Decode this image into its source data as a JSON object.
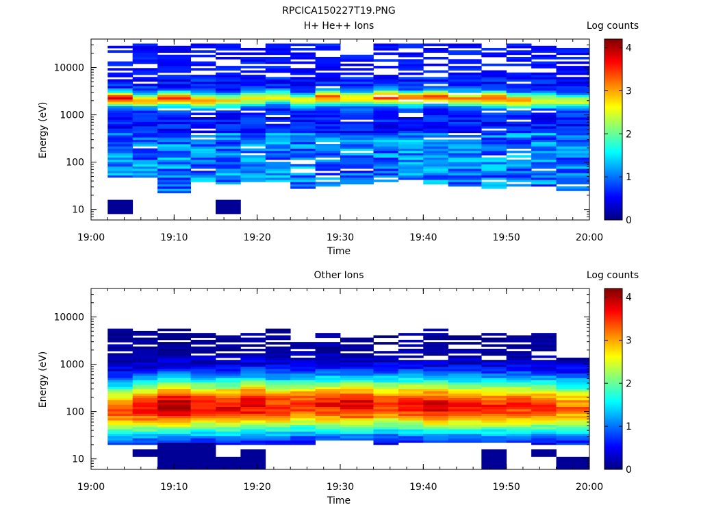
{
  "figure_title": "RPCICA150227T19.PNG",
  "panels": [
    {
      "title": "H+ He++ Ions",
      "ylabel": "Energy (eV)",
      "xlabel": "Time",
      "cbar_label": "Log counts"
    },
    {
      "title": "Other Ions",
      "ylabel": "Energy (eV)",
      "xlabel": "Time",
      "cbar_label": "Log counts"
    }
  ],
  "colorscale": {
    "name": "jet",
    "stops": [
      "#00007f",
      "#0000ff",
      "#007fff",
      "#00ffff",
      "#7fff7f",
      "#ffff00",
      "#ff7f00",
      "#ff0000",
      "#7f0000"
    ],
    "range": [
      0,
      4.2
    ],
    "ticks": [
      0,
      1,
      2,
      3,
      4
    ]
  },
  "chart_data": [
    {
      "type": "heatmap",
      "title": "H+ He++ Ions",
      "xlabel": "Time",
      "ylabel": "Energy (eV)",
      "y_scale": "log",
      "xlim": [
        "19:00",
        "20:00"
      ],
      "ylim": [
        6,
        40000
      ],
      "x_ticks": [
        "19:00",
        "19:10",
        "19:20",
        "19:30",
        "19:40",
        "19:50",
        "20:00"
      ],
      "y_ticks": [
        "10",
        "100",
        "1000",
        "10000"
      ],
      "colorbar_label": "Log counts",
      "colorbar_ticks": [
        "0",
        "1",
        "2",
        "3",
        "4"
      ],
      "time_bins": [
        "19:02",
        "19:05",
        "19:08",
        "19:12",
        "19:15",
        "19:18",
        "19:21",
        "19:24",
        "19:27",
        "19:30",
        "19:34",
        "19:37",
        "19:40",
        "19:43",
        "19:47",
        "19:50",
        "19:53",
        "19:56"
      ],
      "profiles": [
        {
          "from": "19:02",
          "to": "19:05",
          "low": 48,
          "high": 35000,
          "peak_energy": 2200,
          "peak_value": 3.0,
          "extra": [
            [
              8,
              16,
              0.1
            ]
          ]
        },
        {
          "from": "19:05",
          "to": "19:08",
          "low": 48,
          "high": 33000,
          "peak_energy": 2000,
          "peak_value": 2.2
        },
        {
          "from": "19:08",
          "to": "19:12",
          "low": 23,
          "high": 33000,
          "peak_energy": 2200,
          "peak_value": 2.8
        },
        {
          "from": "19:12",
          "to": "19:15",
          "low": 40,
          "high": 33000,
          "peak_energy": 2000,
          "peak_value": 2.2
        },
        {
          "from": "19:15",
          "to": "19:18",
          "low": 35,
          "high": 33000,
          "peak_energy": 2000,
          "peak_value": 2.0,
          "extra": [
            [
              8,
              16,
              0.1
            ]
          ]
        },
        {
          "from": "19:18",
          "to": "19:21",
          "low": 35,
          "high": 33000,
          "peak_energy": 2200,
          "peak_value": 2.0
        },
        {
          "from": "19:21",
          "to": "19:24",
          "low": 40,
          "high": 33000,
          "peak_energy": 2400,
          "peak_value": 2.0
        },
        {
          "from": "19:24",
          "to": "19:27",
          "low": 28,
          "high": 33000,
          "peak_energy": 2000,
          "peak_value": 2.0
        },
        {
          "from": "19:27",
          "to": "19:30",
          "low": 32,
          "high": 33000,
          "peak_energy": 2400,
          "peak_value": 2.6
        },
        {
          "from": "19:30",
          "to": "19:34",
          "low": 35,
          "high": 33000,
          "peak_energy": 2200,
          "peak_value": 2.2
        },
        {
          "from": "19:34",
          "to": "19:37",
          "low": 40,
          "high": 35000,
          "peak_energy": 2400,
          "peak_value": 3.0
        },
        {
          "from": "19:37",
          "to": "19:40",
          "low": 45,
          "high": 33000,
          "peak_energy": 2200,
          "peak_value": 2.8
        },
        {
          "from": "19:40",
          "to": "19:43",
          "low": 35,
          "high": 33000,
          "peak_energy": 2400,
          "peak_value": 2.8
        },
        {
          "from": "19:43",
          "to": "19:47",
          "low": 30,
          "high": 33000,
          "peak_energy": 2200,
          "peak_value": 2.4
        },
        {
          "from": "19:47",
          "to": "19:50",
          "low": 28,
          "high": 33000,
          "peak_energy": 2200,
          "peak_value": 2.8
        },
        {
          "from": "19:50",
          "to": "19:53",
          "low": 32,
          "high": 33000,
          "peak_energy": 2000,
          "peak_value": 2.4
        },
        {
          "from": "19:53",
          "to": "19:56",
          "low": 30,
          "high": 33000,
          "peak_energy": 2000,
          "peak_value": 2.0
        },
        {
          "from": "19:56",
          "to": "20:00",
          "low": 24,
          "high": 35000,
          "peak_energy": 2000,
          "peak_value": 1.8
        }
      ]
    },
    {
      "type": "heatmap",
      "title": "Other Ions",
      "xlabel": "Time",
      "ylabel": "Energy (eV)",
      "y_scale": "log",
      "xlim": [
        "19:00",
        "20:00"
      ],
      "ylim": [
        6,
        40000
      ],
      "x_ticks": [
        "19:00",
        "19:10",
        "19:20",
        "19:30",
        "19:40",
        "19:50",
        "20:00"
      ],
      "y_ticks": [
        "10",
        "100",
        "1000",
        "10000"
      ],
      "colorbar_label": "Log counts",
      "colorbar_ticks": [
        "0",
        "1",
        "2",
        "3",
        "4"
      ],
      "time_bins": [
        "19:02",
        "19:05",
        "19:08",
        "19:12",
        "19:15",
        "19:18",
        "19:21",
        "19:24",
        "19:27",
        "19:30",
        "19:34",
        "19:37",
        "19:40",
        "19:43",
        "19:47",
        "19:50",
        "19:53",
        "19:56"
      ],
      "profiles": [
        {
          "from": "19:02",
          "to": "19:05",
          "low": 20,
          "high": 5500,
          "peak_energy": 110,
          "peak_value": 3.3
        },
        {
          "from": "19:05",
          "to": "19:08",
          "low": 20,
          "high": 5000,
          "peak_energy": 120,
          "peak_value": 3.6,
          "extra": [
            [
              11,
              16,
              0.1
            ]
          ]
        },
        {
          "from": "19:08",
          "to": "19:12",
          "low": 20,
          "high": 5500,
          "peak_energy": 130,
          "peak_value": 4.0,
          "extra": [
            [
              6,
              22,
              0.1
            ]
          ]
        },
        {
          "from": "19:12",
          "to": "19:15",
          "low": 20,
          "high": 5000,
          "peak_energy": 130,
          "peak_value": 3.6,
          "extra": [
            [
              6,
              22,
              0.1
            ]
          ]
        },
        {
          "from": "19:15",
          "to": "19:18",
          "low": 20,
          "high": 4500,
          "peak_energy": 130,
          "peak_value": 3.7,
          "extra": [
            [
              6,
              11,
              0.1
            ]
          ]
        },
        {
          "from": "19:18",
          "to": "19:21",
          "low": 20,
          "high": 4500,
          "peak_energy": 140,
          "peak_value": 3.8,
          "extra": [
            [
              6,
              16,
              0.1
            ]
          ]
        },
        {
          "from": "19:21",
          "to": "19:24",
          "low": 20,
          "high": 5500,
          "peak_energy": 130,
          "peak_value": 3.5
        },
        {
          "from": "19:24",
          "to": "19:27",
          "low": 20,
          "high": 3000,
          "peak_energy": 140,
          "peak_value": 3.5
        },
        {
          "from": "19:27",
          "to": "19:30",
          "low": 25,
          "high": 4500,
          "peak_energy": 140,
          "peak_value": 3.6
        },
        {
          "from": "19:30",
          "to": "19:34",
          "low": 25,
          "high": 4000,
          "peak_energy": 140,
          "peak_value": 3.8
        },
        {
          "from": "19:34",
          "to": "19:37",
          "low": 17,
          "high": 4000,
          "peak_energy": 140,
          "peak_value": 3.4
        },
        {
          "from": "19:37",
          "to": "19:40",
          "low": 22,
          "high": 4500,
          "peak_energy": 140,
          "peak_value": 3.6
        },
        {
          "from": "19:40",
          "to": "19:43",
          "low": 22,
          "high": 5500,
          "peak_energy": 130,
          "peak_value": 3.8
        },
        {
          "from": "19:43",
          "to": "19:47",
          "low": 22,
          "high": 5000,
          "peak_energy": 130,
          "peak_value": 3.6
        },
        {
          "from": "19:47",
          "to": "19:50",
          "low": 22,
          "high": 4500,
          "peak_energy": 130,
          "peak_value": 3.5,
          "extra": [
            [
              6,
              16,
              0.1
            ]
          ]
        },
        {
          "from": "19:50",
          "to": "19:53",
          "low": 22,
          "high": 4000,
          "peak_energy": 130,
          "peak_value": 3.5
        },
        {
          "from": "19:53",
          "to": "19:56",
          "low": 17,
          "high": 4500,
          "peak_energy": 130,
          "peak_value": 3.5,
          "extra": [
            [
              11,
              16,
              0.1
            ]
          ]
        },
        {
          "from": "19:56",
          "to": "20:00",
          "low": 20,
          "high": 1400,
          "peak_energy": 120,
          "peak_value": 3.2,
          "extra": [
            [
              6,
              11,
              0.1
            ]
          ]
        }
      ]
    }
  ]
}
